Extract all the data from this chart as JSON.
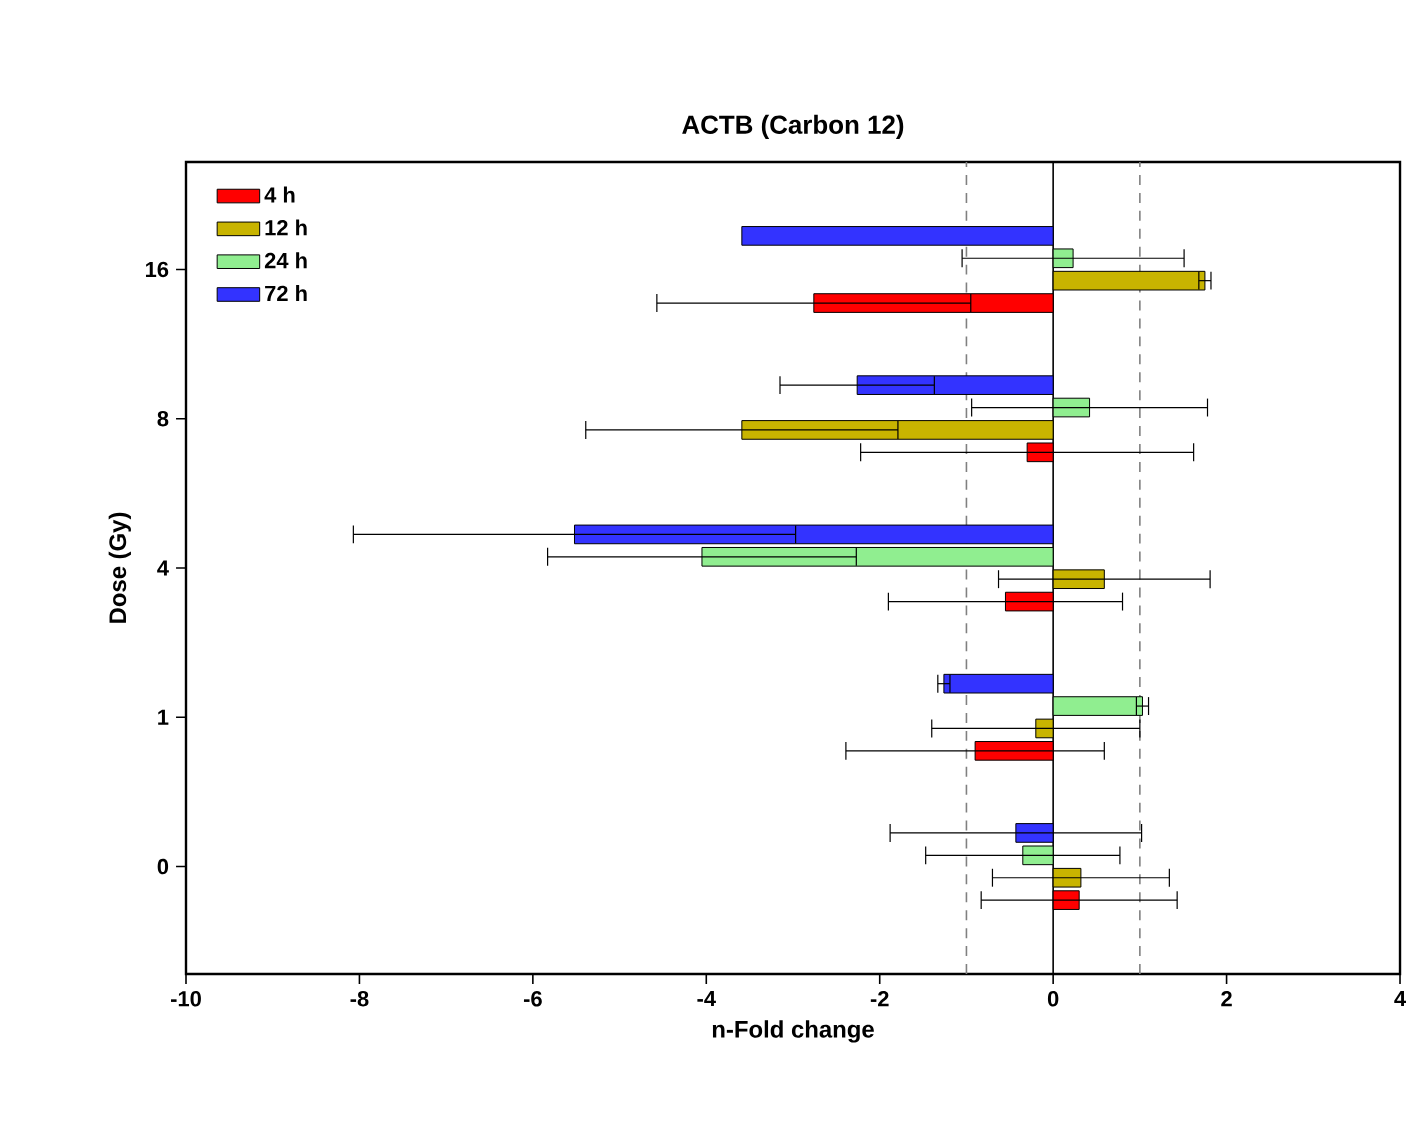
{
  "chart_data": {
    "type": "bar",
    "orientation": "horizontal",
    "title": "ACTB (Carbon 12)",
    "xlabel": "n-Fold change",
    "ylabel": "Dose (Gy)",
    "categories": [
      "16",
      "8",
      "4",
      "1",
      "0"
    ],
    "series": [
      {
        "name": "4 h",
        "color": "#ff0000",
        "values": [
          -2.76,
          -0.3,
          -0.55,
          -0.9,
          0.3
        ],
        "errors": [
          1.81,
          1.92,
          1.35,
          1.49,
          1.13
        ]
      },
      {
        "name": "12 h",
        "color": "#c8b400",
        "values": [
          1.75,
          -3.59,
          0.59,
          -0.2,
          0.32
        ],
        "errors": [
          0.07,
          1.8,
          1.22,
          1.2,
          1.02
        ]
      },
      {
        "name": "24 h",
        "color": "#90ee90",
        "values": [
          0.23,
          0.42,
          -4.05,
          1.03,
          -0.35
        ],
        "errors": [
          1.28,
          1.36,
          1.78,
          0.07,
          1.12
        ]
      },
      {
        "name": "72 h",
        "color": "#3333ff",
        "values": [
          -3.59,
          -2.26,
          -5.52,
          -1.26,
          -0.43
        ],
        "errors": [
          null,
          0.89,
          2.55,
          0.07,
          1.45
        ]
      }
    ],
    "xlim": [
      -10,
      4
    ],
    "xticks": [
      -10,
      -8,
      -6,
      -4,
      -2,
      0,
      2,
      4
    ],
    "ref_lines": [
      {
        "axis": "x",
        "value": -1,
        "color": "#808080",
        "line_style": "dashed"
      },
      {
        "axis": "x",
        "value": 0,
        "color": "#000000",
        "line_style": "solid"
      },
      {
        "axis": "x",
        "value": 1,
        "color": "#808080",
        "line_style": "dashed"
      }
    ],
    "legend": "top left",
    "grid": false
  }
}
